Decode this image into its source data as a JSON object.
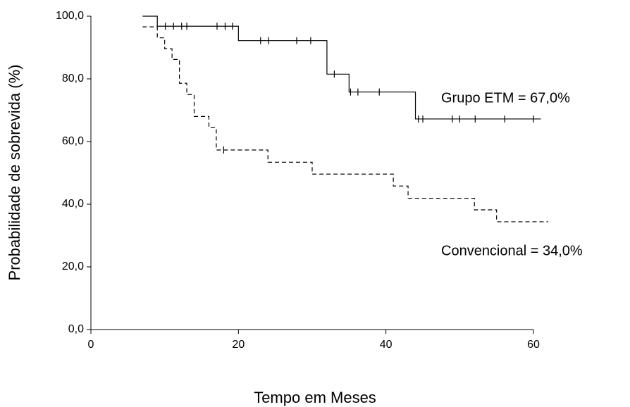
{
  "chart_data": {
    "type": "step",
    "xlabel": "Tempo em Meses",
    "ylabel": "Probabilidade de sobrevida (%)",
    "xlim": [
      0,
      60
    ],
    "ylim": [
      0,
      100
    ],
    "xticks": [
      0,
      20,
      40,
      60
    ],
    "yticks": [
      {
        "value": 0,
        "label": "0,0"
      },
      {
        "value": 20,
        "label": "20,0"
      },
      {
        "value": 40,
        "label": "40,0"
      },
      {
        "value": 60,
        "label": "60,0"
      },
      {
        "value": 80,
        "label": "80,0"
      },
      {
        "value": 100,
        "label": "100,0"
      }
    ],
    "annotations": [
      "Grupo ETM = 67,0%",
      "Convencional = 34,0%"
    ],
    "series": [
      {
        "color": "#000000",
        "dash": false,
        "x": [
          7,
          9,
          20,
          32,
          35,
          44,
          61
        ],
        "values": [
          100,
          96.8,
          92.2,
          81.5,
          75.8,
          67.2,
          67.2
        ],
        "censor_x": [
          10.1,
          11.2,
          12.3,
          13.0,
          17.1,
          18.2,
          19.2,
          23.0,
          24.1,
          27.9,
          29.8,
          33.0,
          35.2,
          36.2,
          39.1,
          44.4,
          45.0,
          49.0,
          50.0,
          52.1,
          56.1,
          60.0
        ],
        "censor_values": [
          96.8,
          96.8,
          96.8,
          96.8,
          96.8,
          96.8,
          96.8,
          92.2,
          92.2,
          92.2,
          92.2,
          81.5,
          75.8,
          75.8,
          75.8,
          67.2,
          67.2,
          67.2,
          67.2,
          67.2,
          67.2,
          67.2
        ]
      },
      {
        "color": "#000000",
        "dash": true,
        "x": [
          7,
          9,
          10,
          11,
          12,
          13,
          14,
          16,
          17,
          24,
          30,
          41,
          43,
          52,
          55,
          62
        ],
        "values": [
          96.6,
          93.1,
          89.6,
          86.2,
          78.6,
          75.0,
          68.0,
          64.4,
          57.3,
          53.4,
          49.6,
          45.8,
          41.9,
          38.2,
          34.4,
          34.4
        ],
        "censor_x": [
          18.0
        ],
        "censor_values": [
          57.3
        ]
      }
    ]
  }
}
